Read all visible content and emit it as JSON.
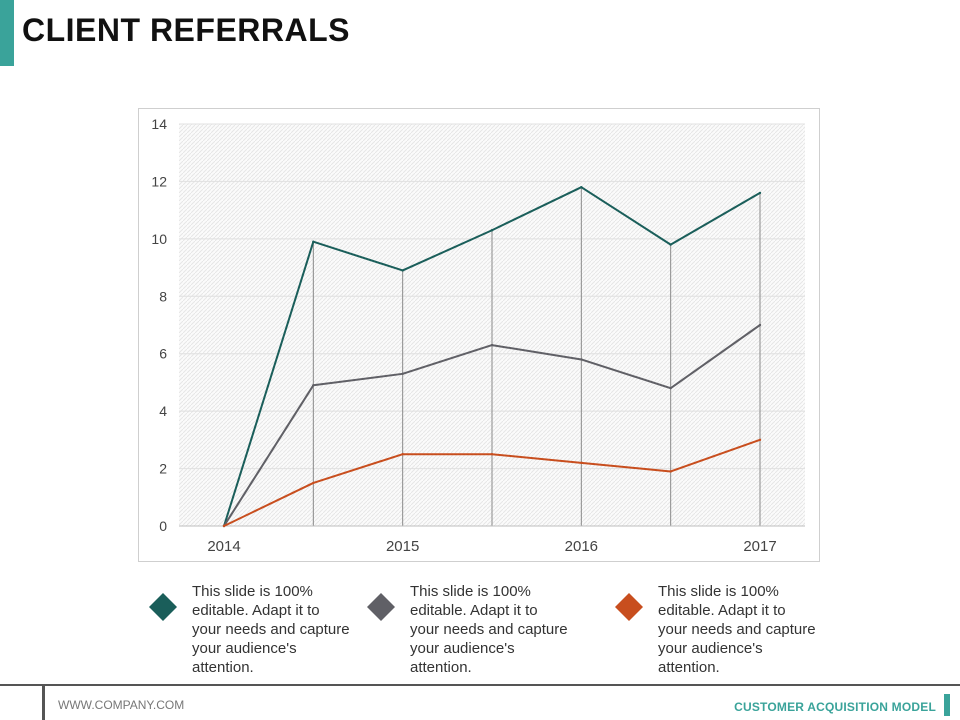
{
  "page": {
    "title": "CLIENT REFERRALS"
  },
  "colors": {
    "accent": "#3aa39a",
    "series1": "#1a5e5a",
    "series2": "#606066",
    "series3": "#c84e1e"
  },
  "chart_data": {
    "type": "line",
    "x": [
      0,
      1,
      2,
      3,
      4,
      5,
      6
    ],
    "x_tick_labels": [
      "2014",
      "2015",
      "2016",
      "2017"
    ],
    "x_tick_positions": [
      0,
      2,
      4,
      6
    ],
    "y_ticks": [
      "0",
      "2",
      "4",
      "6",
      "8",
      "10",
      "12",
      "14"
    ],
    "ylim": [
      0,
      14
    ],
    "grid": true,
    "series": [
      {
        "values": [
          0,
          9.9,
          8.9,
          10.3,
          11.8,
          9.8,
          11.6
        ],
        "color": "#1a5e5a"
      },
      {
        "values": [
          0,
          4.9,
          5.3,
          6.3,
          5.8,
          4.8,
          7.0
        ],
        "color": "#606066"
      },
      {
        "values": [
          0,
          1.5,
          2.5,
          2.5,
          2.2,
          1.9,
          3.0
        ],
        "color": "#c84e1e"
      }
    ]
  },
  "legend": [
    {
      "text": "This slide is 100% editable. Adapt it to your needs and capture your audience's attention.",
      "color": "#1a5e5a"
    },
    {
      "text": "This slide is 100% editable. Adapt it to your needs and capture your audience's attention.",
      "color": "#606066"
    },
    {
      "text": "This slide is 100% editable. Adapt it to your needs and capture your audience's attention.",
      "color": "#c84e1e"
    }
  ],
  "footer": {
    "url": "WWW.COMPANY.COM",
    "label": "CUSTOMER ACQUISITION MODEL"
  }
}
